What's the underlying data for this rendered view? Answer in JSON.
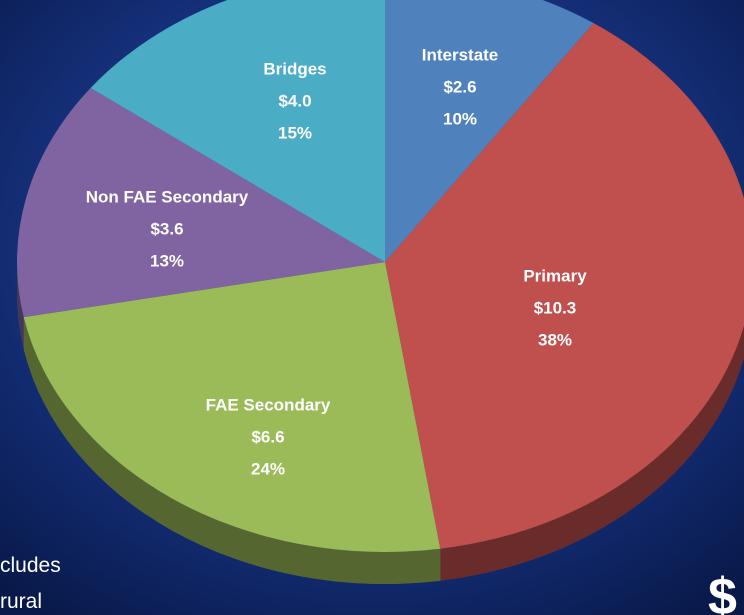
{
  "chart_data": {
    "type": "pie",
    "categories": [
      "Interstate",
      "Primary",
      "FAE Secondary",
      "Non FAE Secondary",
      "Bridges"
    ],
    "values": [
      2.6,
      10.3,
      6.6,
      3.6,
      4.0
    ],
    "value_labels": [
      "$2.6",
      "$10.3",
      "$6.6",
      "$3.6",
      "$4.0"
    ],
    "percentage_labels": [
      "10%",
      "38%",
      "24%",
      "13%",
      "15%"
    ],
    "colors": [
      "#4f81bd",
      "#c0504d",
      "#9bbb59",
      "#8064a2",
      "#4bacc6"
    ],
    "annotations": [
      "cludes",
      "rural",
      "$"
    ]
  }
}
